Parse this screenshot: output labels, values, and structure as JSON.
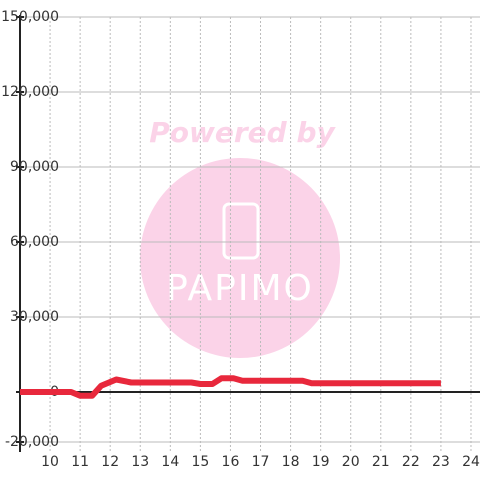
{
  "chart_data": {
    "type": "line",
    "watermark": {
      "caption": "Powered by",
      "logo": "PAPIMO"
    },
    "x": [
      9,
      10.7,
      11.0,
      11.4,
      11.7,
      12.2,
      12.7,
      13,
      14.7,
      15,
      15.4,
      15.7,
      16.1,
      16.4,
      18.4,
      18.7,
      23
    ],
    "series": [
      {
        "color": "#e8283c",
        "values": [
          0,
          0,
          -1500,
          -1500,
          2500,
          5000,
          3800,
          3800,
          3800,
          3200,
          3200,
          5500,
          5500,
          4500,
          4500,
          3500,
          3500
        ]
      }
    ],
    "xlim": [
      9,
      24.3
    ],
    "xticks": [
      10,
      11,
      12,
      13,
      14,
      15,
      16,
      17,
      18,
      19,
      20,
      21,
      22,
      23,
      24
    ],
    "ylim": [
      -20000,
      150000
    ],
    "yticks": [
      {
        "value": -20000,
        "label": "-20,000"
      },
      0,
      {
        "value": 30000,
        "label": "30,000"
      },
      {
        "value": 60000,
        "label": "60,000"
      },
      {
        "value": 90000,
        "label": "90,000"
      },
      {
        "value": 120000,
        "label": "120,000"
      },
      {
        "value": 150000,
        "label": "150,000"
      }
    ],
    "grid": true
  }
}
